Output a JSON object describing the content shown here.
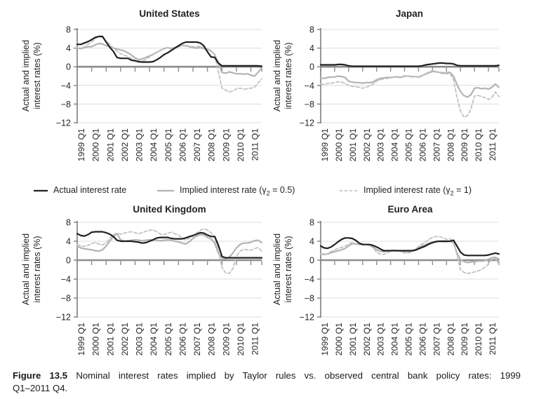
{
  "colors": {
    "background": "#ffffff",
    "text": "#231f20",
    "gridline": "#dcdcdc",
    "zero_axis": "#8c8c8c",
    "axis": "#7f7f7f",
    "actual_line": "#231f20",
    "implied_05_line": "#b1b3b5",
    "implied_1_line": "#c0c2c4"
  },
  "legend": [
    {
      "pre": "Actual interest rate",
      "sub": "",
      "post": "",
      "style": "solid",
      "color": "#231f20"
    },
    {
      "pre": "Implied interest rate (γ",
      "sub": "2",
      "post": " = 0.5)",
      "style": "solid",
      "color": "#b1b3b5"
    },
    {
      "pre": "Implied interest rate (γ",
      "sub": "2",
      "post": " = 1)",
      "style": "dashed",
      "color": "#c0c2c4"
    }
  ],
  "caption": {
    "prefix": "Figure 13.5",
    "line1_rest": "Nominal interest rates implied by Taylor rules vs. observed central bank policy rates: 1999",
    "line2": "Q1–2011 Q4."
  },
  "chart_data": [
    {
      "type": "line",
      "title": "United States",
      "ylabel": "Actual and implied interest rates (%)",
      "ylabel_lines": [
        "Actual and implied",
        "interest rates (%)"
      ],
      "ylim": [
        -12,
        8
      ],
      "yticks": [
        8,
        4,
        0,
        -4,
        -8,
        -12
      ],
      "grid": true,
      "x_labels": [
        "1999 Q1",
        "2000 Q1",
        "2001 Q1",
        "2002 Q1",
        "2003 Q1",
        "2004 Q1",
        "2005 Q1",
        "2006 Q1",
        "2007 Q1",
        "2008 Q1",
        "2009 Q1",
        "2010 Q1",
        "2011 Q1"
      ],
      "quarters_per_label": 4,
      "series": [
        {
          "key": "actual",
          "name": "Actual interest rate",
          "style": "solid",
          "color": "#231f20",
          "width": 2.2,
          "values": [
            4.8,
            4.8,
            5.1,
            5.4,
            5.8,
            6.3,
            6.5,
            6.5,
            5.3,
            4.2,
            3.3,
            2.0,
            1.8,
            1.8,
            1.8,
            1.4,
            1.3,
            1.1,
            1.0,
            1.0,
            1.0,
            1.1,
            1.5,
            2.0,
            2.6,
            3.0,
            3.5,
            4.0,
            4.5,
            5.0,
            5.3,
            5.3,
            5.3,
            5.3,
            5.1,
            4.5,
            3.2,
            2.1,
            2.0,
            0.8,
            0.2,
            0.2,
            0.2,
            0.2,
            0.2,
            0.2,
            0.2,
            0.2,
            0.2,
            0.2,
            0.2,
            0.1
          ]
        },
        {
          "key": "implied_gamma_0_5",
          "name": "Implied interest rate (γ2 = 0.5)",
          "style": "solid",
          "color": "#b1b3b5",
          "width": 2.2,
          "values": [
            4.0,
            3.9,
            4.1,
            4.3,
            4.3,
            4.7,
            5.0,
            4.9,
            4.5,
            4.3,
            4.0,
            3.8,
            3.6,
            3.4,
            3.0,
            2.5,
            1.9,
            1.5,
            1.7,
            2.0,
            2.3,
            2.7,
            3.1,
            3.5,
            3.9,
            4.1,
            3.9,
            4.0,
            4.3,
            4.6,
            4.5,
            4.3,
            4.1,
            4.0,
            4.1,
            3.9,
            3.7,
            3.4,
            2.6,
            0.8,
            -1.2,
            -1.4,
            -1.1,
            -1.3,
            -1.5,
            -1.5,
            -1.6,
            -1.5,
            -1.8,
            -2.0,
            -1.2,
            -0.2
          ]
        },
        {
          "key": "implied_gamma_1",
          "name": "Implied interest rate (γ2 = 1)",
          "style": "dashed",
          "color": "#c0c2c4",
          "width": 1.8,
          "values": [
            4.1,
            4.0,
            4.3,
            4.8,
            5.3,
            6.0,
            6.6,
            6.3,
            5.5,
            4.8,
            4.0,
            3.3,
            2.8,
            2.5,
            2.2,
            1.8,
            1.2,
            0.9,
            1.2,
            1.6,
            2.1,
            2.6,
            3.1,
            3.5,
            3.8,
            4.1,
            4.0,
            4.2,
            4.4,
            4.7,
            4.6,
            4.4,
            4.3,
            4.3,
            4.4,
            4.1,
            3.8,
            3.5,
            2.5,
            -1.0,
            -4.6,
            -5.0,
            -5.4,
            -5.2,
            -4.7,
            -4.6,
            -4.8,
            -4.7,
            -4.6,
            -4.4,
            -3.5,
            -2.6
          ]
        }
      ]
    },
    {
      "type": "line",
      "title": "Japan",
      "ylabel": "Actual and implied interest rates (%)",
      "ylabel_lines": [
        "Actual and implied",
        "interest rates (%)"
      ],
      "ylim": [
        -12,
        8
      ],
      "yticks": [
        8,
        4,
        0,
        -4,
        -8,
        -12
      ],
      "grid": true,
      "x_labels": [
        "1999 Q1",
        "2000 Q1",
        "2001 Q1",
        "2002 Q1",
        "2003 Q1",
        "2004 Q1",
        "2005 Q1",
        "2006 Q1",
        "2007 Q1",
        "2008 Q1",
        "2009 Q1",
        "2010 Q1",
        "2011 Q1"
      ],
      "quarters_per_label": 4,
      "series": [
        {
          "key": "actual",
          "name": "Actual interest rate",
          "style": "solid",
          "color": "#231f20",
          "width": 2.2,
          "values": [
            0.4,
            0.4,
            0.4,
            0.4,
            0.4,
            0.5,
            0.5,
            0.4,
            0.2,
            0.1,
            0.1,
            0.1,
            0.1,
            0.1,
            0.1,
            0.1,
            0.1,
            0.1,
            0.1,
            0.1,
            0.1,
            0.1,
            0.1,
            0.1,
            0.1,
            0.1,
            0.1,
            0.1,
            0.1,
            0.2,
            0.4,
            0.5,
            0.6,
            0.7,
            0.8,
            0.8,
            0.7,
            0.7,
            0.6,
            0.3,
            0.2,
            0.2,
            0.2,
            0.2,
            0.2,
            0.2,
            0.2,
            0.2,
            0.2,
            0.2,
            0.2,
            0.3
          ]
        },
        {
          "key": "implied_gamma_0_5",
          "name": "Implied interest rate (γ2 = 0.5)",
          "style": "solid",
          "color": "#b1b3b5",
          "width": 2.2,
          "values": [
            -2.4,
            -2.5,
            -2.3,
            -2.2,
            -2.2,
            -2.0,
            -2.1,
            -2.3,
            -3.1,
            -3.3,
            -3.4,
            -3.4,
            -3.5,
            -3.4,
            -3.4,
            -3.3,
            -2.8,
            -2.5,
            -2.4,
            -2.3,
            -2.3,
            -2.2,
            -2.2,
            -2.3,
            -2.0,
            -2.0,
            -2.1,
            -2.1,
            -2.2,
            -1.9,
            -1.6,
            -1.3,
            -1.0,
            -1.1,
            -1.2,
            -1.3,
            -1.3,
            -1.2,
            -2.0,
            -3.8,
            -5.3,
            -6.2,
            -6.5,
            -6.0,
            -4.6,
            -4.5,
            -4.7,
            -4.6,
            -4.8,
            -4.4,
            -3.7,
            -4.4
          ]
        },
        {
          "key": "implied_gamma_1",
          "name": "Implied interest rate (γ2 = 1)",
          "style": "dashed",
          "color": "#c0c2c4",
          "width": 1.8,
          "values": [
            -3.7,
            -3.8,
            -3.6,
            -3.5,
            -3.4,
            -3.2,
            -3.3,
            -3.6,
            -4.0,
            -4.2,
            -4.3,
            -4.4,
            -4.6,
            -4.4,
            -4.1,
            -3.7,
            -3.1,
            -2.8,
            -2.6,
            -2.5,
            -2.4,
            -2.2,
            -2.1,
            -2.2,
            -1.9,
            -2.0,
            -2.2,
            -2.1,
            -2.3,
            -2.0,
            -1.5,
            -1.1,
            -0.8,
            -1.0,
            -1.3,
            -1.5,
            -1.5,
            -1.4,
            -2.8,
            -6.5,
            -9.5,
            -10.8,
            -10.5,
            -9.0,
            -6.3,
            -6.1,
            -6.4,
            -6.6,
            -7.0,
            -6.6,
            -5.4,
            -6.4
          ]
        }
      ]
    },
    {
      "type": "line",
      "title": "United Kingdom",
      "ylabel": "Actual and implied interest rates (%)",
      "ylabel_lines": [
        "Actual and implied",
        "interest rates (%)"
      ],
      "ylim": [
        -12,
        8
      ],
      "yticks": [
        8,
        4,
        0,
        -4,
        -8,
        -12
      ],
      "grid": true,
      "x_labels": [
        "1999 Q1",
        "2000 Q1",
        "2001 Q1",
        "2002 Q1",
        "2003 Q1",
        "2004 Q1",
        "2005 Q1",
        "2006 Q1",
        "2007 Q1",
        "2008 Q1",
        "2009 Q1",
        "2010 Q1",
        "2011 Q1"
      ],
      "quarters_per_label": 4,
      "series": [
        {
          "key": "actual",
          "name": "Actual interest rate",
          "style": "solid",
          "color": "#231f20",
          "width": 2.2,
          "values": [
            5.6,
            5.2,
            5.1,
            5.4,
            5.9,
            6.0,
            6.0,
            6.0,
            5.8,
            5.5,
            5.0,
            4.2,
            4.0,
            4.0,
            4.0,
            4.0,
            3.9,
            3.8,
            3.6,
            3.7,
            4.0,
            4.3,
            4.7,
            4.8,
            4.8,
            4.8,
            4.6,
            4.5,
            4.5,
            4.5,
            4.7,
            5.0,
            5.2,
            5.5,
            5.8,
            5.7,
            5.3,
            5.0,
            5.0,
            3.2,
            0.8,
            0.5,
            0.5,
            0.5,
            0.5,
            0.5,
            0.5,
            0.5,
            0.5,
            0.5,
            0.5,
            0.5
          ]
        },
        {
          "key": "implied_gamma_0_5",
          "name": "Implied interest rate (γ2 = 0.5)",
          "style": "solid",
          "color": "#b1b3b5",
          "width": 2.2,
          "values": [
            2.9,
            2.6,
            2.4,
            2.3,
            2.2,
            2.0,
            1.9,
            2.2,
            3.0,
            4.0,
            5.0,
            5.6,
            4.3,
            4.0,
            4.1,
            4.2,
            4.3,
            4.2,
            4.1,
            4.2,
            4.3,
            4.3,
            4.2,
            4.1,
            4.2,
            4.3,
            4.2,
            4.0,
            3.9,
            3.6,
            3.4,
            3.9,
            4.6,
            5.1,
            5.4,
            5.3,
            4.8,
            4.5,
            3.6,
            1.5,
            0.4,
            0.3,
            0.6,
            1.5,
            2.6,
            3.3,
            3.6,
            3.6,
            3.8,
            4.1,
            4.2,
            3.7
          ]
        },
        {
          "key": "implied_gamma_1",
          "name": "Implied interest rate (γ2 = 1)",
          "style": "dashed",
          "color": "#c0c2c4",
          "width": 1.8,
          "values": [
            3.3,
            3.0,
            2.9,
            3.1,
            3.5,
            3.7,
            3.4,
            3.2,
            3.7,
            4.6,
            5.4,
            5.7,
            5.5,
            5.7,
            5.9,
            6.0,
            5.8,
            5.6,
            5.8,
            6.1,
            6.3,
            6.4,
            6.0,
            5.5,
            5.4,
            5.7,
            5.9,
            5.6,
            5.3,
            4.7,
            4.3,
            4.6,
            5.1,
            5.7,
            6.3,
            6.6,
            6.4,
            5.8,
            4.8,
            2.0,
            -1.5,
            -2.7,
            -2.8,
            -1.8,
            0.8,
            1.9,
            2.3,
            2.2,
            2.1,
            2.4,
            2.7,
            1.9
          ]
        }
      ]
    },
    {
      "type": "line",
      "title": "Euro Area",
      "ylabel": "Actual and implied interest rates (%)",
      "ylabel_lines": [
        "Actual and implied",
        "interest rates (%)"
      ],
      "ylim": [
        -12,
        8
      ],
      "yticks": [
        8,
        4,
        0,
        -4,
        -8,
        -12
      ],
      "grid": true,
      "x_labels": [
        "1999 Q1",
        "2000 Q1",
        "2001 Q1",
        "2002 Q1",
        "2003 Q1",
        "2004 Q1",
        "2005 Q1",
        "2006 Q1",
        "2007 Q1",
        "2008 Q1",
        "2009 Q1",
        "2010 Q1",
        "2011 Q1"
      ],
      "quarters_per_label": 4,
      "series": [
        {
          "key": "actual",
          "name": "Actual interest rate",
          "style": "solid",
          "color": "#231f20",
          "width": 2.2,
          "values": [
            3.0,
            2.6,
            2.5,
            2.8,
            3.3,
            3.9,
            4.4,
            4.7,
            4.7,
            4.6,
            4.2,
            3.6,
            3.3,
            3.3,
            3.3,
            3.1,
            2.8,
            2.4,
            2.0,
            2.0,
            2.0,
            2.0,
            2.0,
            2.0,
            2.0,
            2.0,
            2.0,
            2.1,
            2.4,
            2.7,
            3.0,
            3.4,
            3.7,
            3.9,
            4.0,
            4.0,
            4.0,
            4.0,
            4.2,
            3.0,
            1.7,
            1.1,
            1.0,
            1.0,
            1.0,
            1.0,
            1.0,
            1.0,
            1.1,
            1.3,
            1.5,
            1.3
          ]
        },
        {
          "key": "implied_gamma_0_5",
          "name": "Implied interest rate (γ2 = 0.5)",
          "style": "solid",
          "color": "#b1b3b5",
          "width": 2.2,
          "values": [
            1.4,
            1.2,
            1.3,
            1.6,
            1.8,
            2.0,
            2.2,
            2.5,
            3.0,
            3.5,
            3.4,
            3.3,
            3.3,
            3.3,
            3.2,
            2.8,
            2.2,
            1.9,
            1.8,
            1.9,
            2.0,
            2.1,
            2.0,
            1.9,
            1.8,
            1.8,
            1.9,
            2.2,
            2.6,
            3.0,
            3.3,
            3.6,
            3.8,
            4.0,
            4.0,
            3.9,
            3.9,
            4.0,
            3.7,
            1.5,
            0.1,
            -0.3,
            -0.5,
            -0.4,
            -0.3,
            -0.2,
            -0.2,
            -0.1,
            0.2,
            0.5,
            0.6,
            0.2
          ]
        },
        {
          "key": "implied_gamma_1",
          "name": "Implied interest rate (γ2 = 1)",
          "style": "dashed",
          "color": "#c0c2c4",
          "width": 1.8,
          "values": [
            1.3,
            1.1,
            1.4,
            1.8,
            2.2,
            2.5,
            2.7,
            3.0,
            3.4,
            3.7,
            3.5,
            3.4,
            3.4,
            3.3,
            3.1,
            2.6,
            1.7,
            1.3,
            1.2,
            1.5,
            1.9,
            2.1,
            2.0,
            1.8,
            1.5,
            1.5,
            1.7,
            2.1,
            2.9,
            3.4,
            3.9,
            4.4,
            4.8,
            5.0,
            5.0,
            4.7,
            4.4,
            4.5,
            4.0,
            1.0,
            -2.0,
            -2.6,
            -2.8,
            -2.7,
            -2.5,
            -2.3,
            -2.0,
            -1.5,
            -0.8,
            0.2,
            0.3,
            -0.8
          ]
        }
      ]
    }
  ]
}
